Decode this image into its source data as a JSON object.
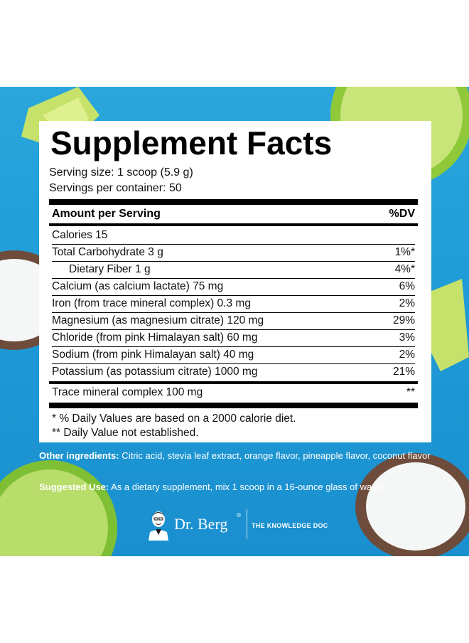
{
  "title": "Supplement Facts",
  "serving_size": "Serving size: 1 scoop (5.9 g)",
  "servings_per_container": "Servings per container: 50",
  "header": {
    "amount": "Amount per Serving",
    "dv": "%DV"
  },
  "rows": [
    {
      "label": "Calories 15",
      "dv": ""
    },
    {
      "label": "Total Carbohydrate 3 g",
      "dv": "1%*"
    },
    {
      "label": "Dietary Fiber 1 g",
      "dv": "4%*"
    },
    {
      "label": "Calcium (as calcium lactate) 75 mg",
      "dv": "6%"
    },
    {
      "label": "Iron (from trace mineral complex) 0.3 mg",
      "dv": "2%"
    },
    {
      "label": "Magnesium (as magnesium citrate) 120 mg",
      "dv": "29%"
    },
    {
      "label": "Chloride (from pink Himalayan salt) 60 mg",
      "dv": "3%"
    },
    {
      "label": "Sodium (from pink Himalayan salt) 40 mg",
      "dv": "2%"
    },
    {
      "label": "Potassium (as potassium citrate) 1000 mg",
      "dv": "21%"
    },
    {
      "label": "Trace mineral complex 100 mg",
      "dv": "**"
    }
  ],
  "footnotes": [
    "* % Daily Values are based on a 2000 calorie diet.",
    "** Daily Value not established."
  ],
  "other_ingredients": {
    "label": "Other ingredients:",
    "text": " Citric acid, stevia leaf extract, orange flavor, pineapple flavor, coconut flavor"
  },
  "suggested_use": {
    "label": "Suggested Use:",
    "text": " As a dietary supplement, mix 1 scoop in a 16-ounce glass of water."
  },
  "brand": {
    "name": "Dr. Berg",
    "registered": "®",
    "tagline": "THE KNOWLEDGE DOC"
  },
  "colors": {
    "background": "#1f9bd6",
    "panel": "#ffffff",
    "text": "#000000"
  }
}
